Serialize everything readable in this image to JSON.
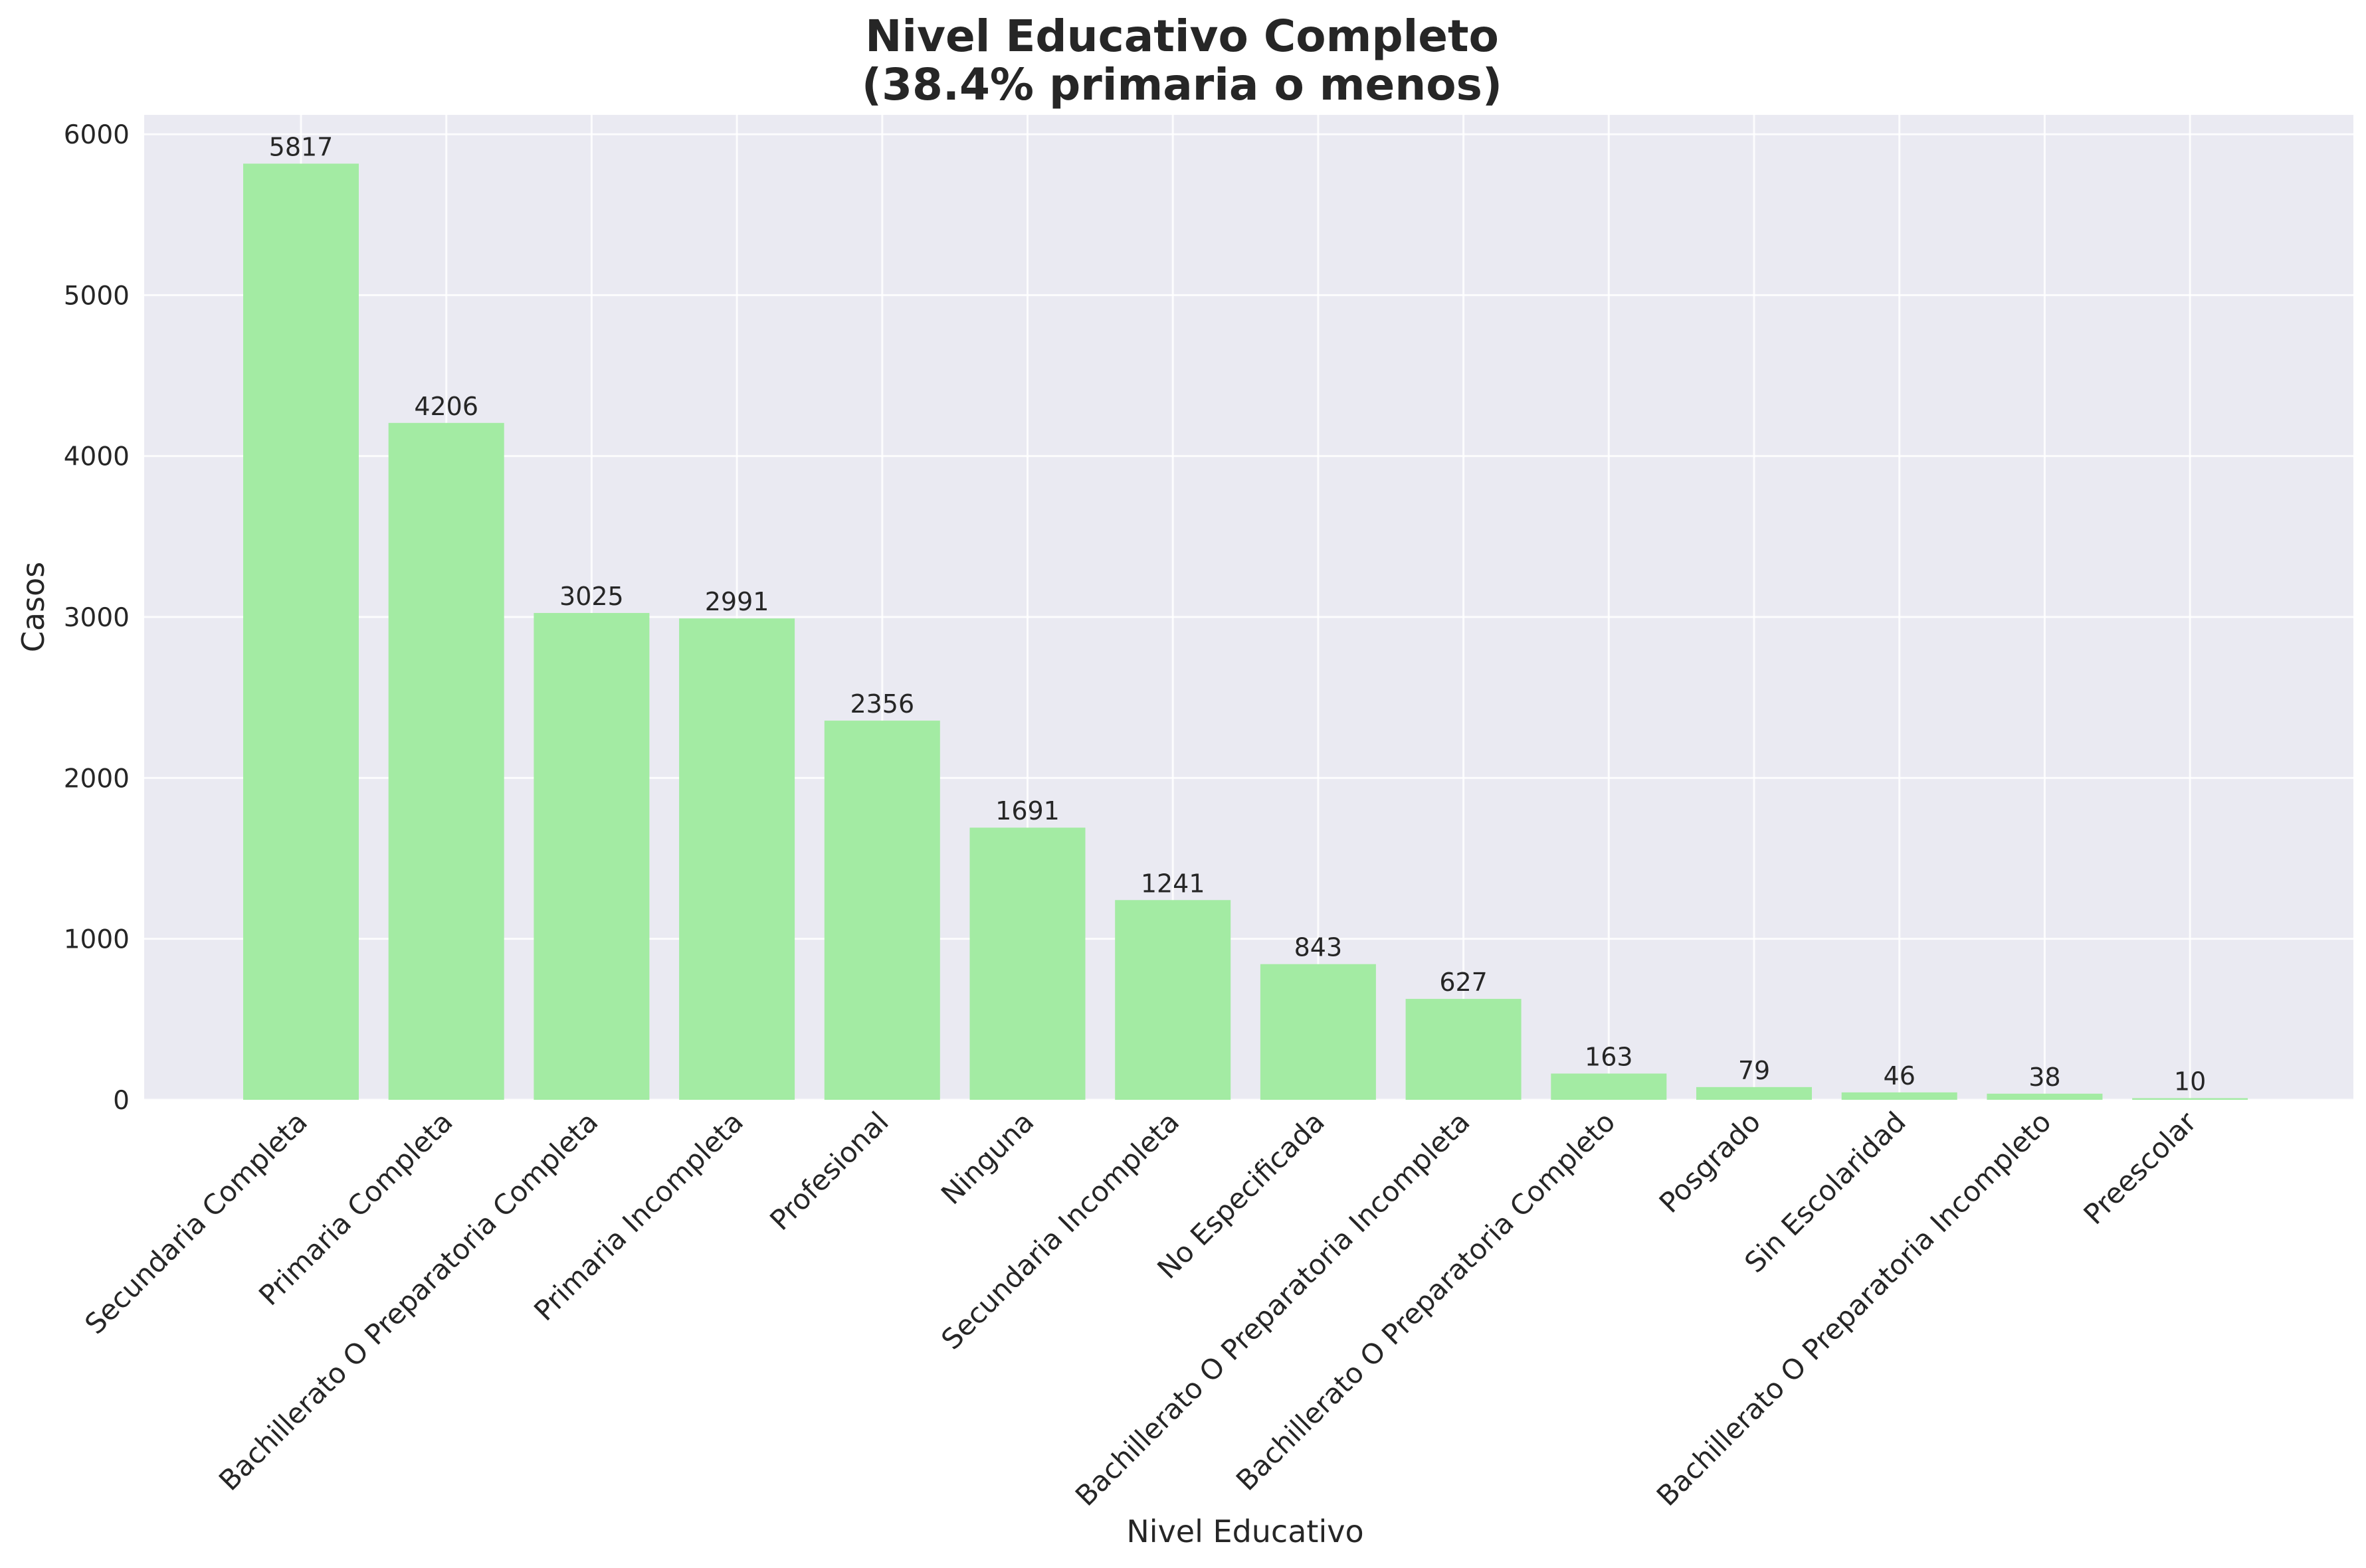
{
  "chart_data": {
    "type": "bar",
    "title_lines": [
      "Nivel Educativo Completo",
      "(38.4% primaria o menos)"
    ],
    "xlabel": "Nivel Educativo",
    "ylabel": "Casos",
    "ylim": [
      0,
      6120
    ],
    "yticks": [
      0,
      1000,
      2000,
      3000,
      4000,
      5000,
      6000
    ],
    "grid": true,
    "legend": "none",
    "categories": [
      "Secundaria Completa",
      "Primaria Completa",
      "Bachillerato O Preparatoria Completa",
      "Primaria Incompleta",
      "Profesional",
      "Ninguna",
      "Secundaria Incompleta",
      "No Especificada",
      "Bachillerato O Preparatoria Incompleta",
      "Bachillerato O Preparatoria Completo",
      "Posgrado",
      "Sin Escolaridad",
      "Bachillerato O Preparatoria Incompleto",
      "Preescolar"
    ],
    "values": [
      5817,
      4206,
      3025,
      2991,
      2356,
      1691,
      1241,
      843,
      627,
      163,
      79,
      46,
      38,
      10
    ],
    "bar_color": "#a3eba3",
    "plot_background": "#eaeaf2"
  }
}
